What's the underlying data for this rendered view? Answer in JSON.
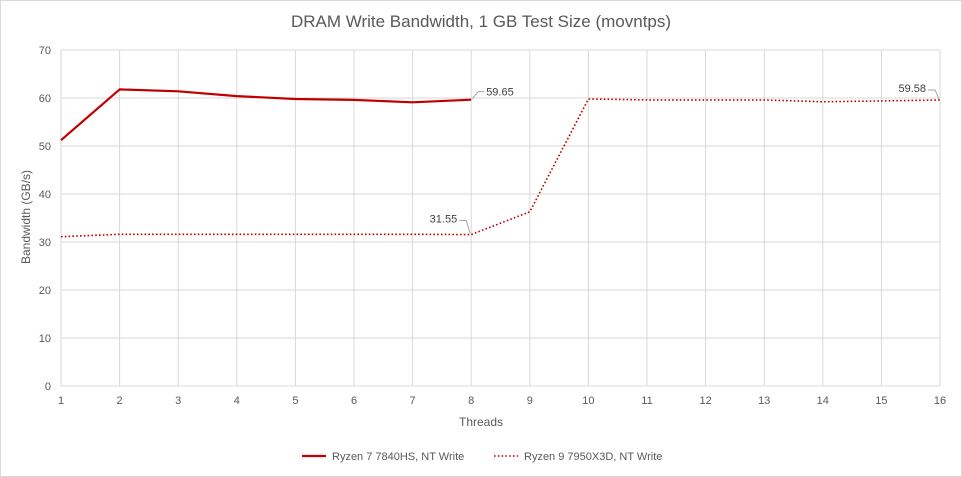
{
  "chart_data": {
    "type": "line",
    "title": "DRAM Write Bandwidth, 1 GB Test Size (movntps)",
    "xlabel": "Threads",
    "ylabel": "Bandwidth (GB/s)",
    "x": [
      1,
      2,
      3,
      4,
      5,
      6,
      7,
      8,
      9,
      10,
      11,
      12,
      13,
      14,
      15,
      16
    ],
    "xlim": [
      1,
      16
    ],
    "ylim": [
      0,
      70
    ],
    "yticks": [
      0,
      10,
      20,
      30,
      40,
      50,
      60,
      70
    ],
    "grid": true,
    "legend_position": "bottom",
    "series": [
      {
        "name": "Ryzen 7 7840HS, NT Write",
        "color": "#c00000",
        "style": "solid",
        "x": [
          1,
          2,
          3,
          4,
          5,
          6,
          7,
          8
        ],
        "values": [
          51.2,
          61.8,
          61.4,
          60.4,
          59.8,
          59.6,
          59.1,
          59.65
        ],
        "labels": [
          {
            "x": 8,
            "text": "59.65"
          }
        ]
      },
      {
        "name": "Ryzen 9 7950X3D, NT Write",
        "color": "#c00000",
        "style": "dotted",
        "x": [
          1,
          2,
          3,
          4,
          5,
          6,
          7,
          8,
          9,
          10,
          11,
          12,
          13,
          14,
          15,
          16
        ],
        "values": [
          31.1,
          31.6,
          31.6,
          31.6,
          31.6,
          31.6,
          31.6,
          31.55,
          36.3,
          59.8,
          59.6,
          59.6,
          59.6,
          59.2,
          59.4,
          59.58
        ],
        "labels": [
          {
            "x": 8,
            "text": "31.55"
          },
          {
            "x": 16,
            "text": "59.58"
          }
        ]
      }
    ]
  }
}
